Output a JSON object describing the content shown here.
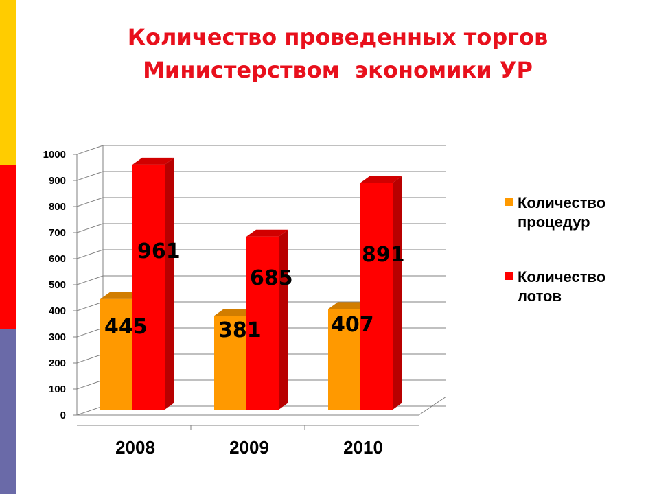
{
  "slide": {
    "title_lines": [
      "Количество проведенных торгов",
      "Министерством  экономики УР"
    ],
    "side_bar_colors": [
      "#ffcc00",
      "#ff0000",
      "#6a6aa8"
    ]
  },
  "colors": {
    "procedures": "#ff9900",
    "lots": "#ff0000",
    "grid": "#808080",
    "divider": "#55607a"
  },
  "chart_data": {
    "type": "bar",
    "chart_style": "3d-clustered-column",
    "categories": [
      "2008",
      "2009",
      "2010"
    ],
    "series": [
      {
        "name": "Количество процедур",
        "values": [
          445,
          381,
          407
        ],
        "color": "#ff9900"
      },
      {
        "name": "Количество лотов",
        "values": [
          961,
          685,
          891
        ],
        "color": "#ff0000"
      }
    ],
    "data_labels": [
      [
        "445",
        "381",
        "407"
      ],
      [
        "961",
        "685",
        "891"
      ]
    ],
    "ylim": [
      0,
      1000
    ],
    "yticks": [
      "0",
      "100",
      "200",
      "300",
      "400",
      "500",
      "600",
      "700",
      "800",
      "900",
      "1000"
    ],
    "grid": true,
    "legend_position": "right",
    "title": "",
    "xlabel": "",
    "ylabel": ""
  }
}
